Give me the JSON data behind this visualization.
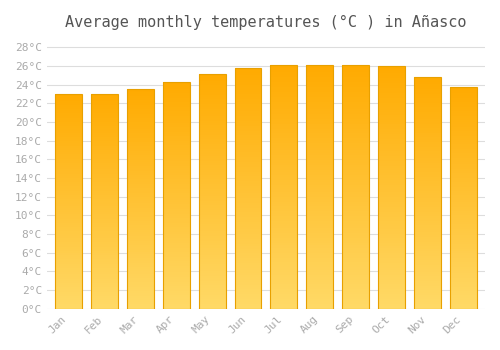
{
  "title": "Average monthly temperatures (°C ) in Añasco",
  "months": [
    "Jan",
    "Feb",
    "Mar",
    "Apr",
    "May",
    "Jun",
    "Jul",
    "Aug",
    "Sep",
    "Oct",
    "Nov",
    "Dec"
  ],
  "values": [
    23.0,
    23.0,
    23.5,
    24.3,
    25.2,
    25.8,
    26.1,
    26.1,
    26.1,
    26.0,
    24.8,
    23.8
  ],
  "bar_color_bottom": "#FFD966",
  "bar_color_top": "#FFAA00",
  "bar_edge_color": "#E8A000",
  "background_color": "#FFFFFF",
  "grid_color": "#DDDDDD",
  "ytick_labels": [
    "0°C",
    "2°C",
    "4°C",
    "6°C",
    "8°C",
    "10°C",
    "12°C",
    "14°C",
    "16°C",
    "18°C",
    "20°C",
    "22°C",
    "24°C",
    "26°C",
    "28°C"
  ],
  "ytick_values": [
    0,
    2,
    4,
    6,
    8,
    10,
    12,
    14,
    16,
    18,
    20,
    22,
    24,
    26,
    28
  ],
  "ylim": [
    0,
    29
  ],
  "title_fontsize": 11,
  "tick_fontsize": 8,
  "font_color": "#AAAAAA",
  "title_color": "#555555",
  "bar_width": 0.75,
  "n_grad": 100
}
